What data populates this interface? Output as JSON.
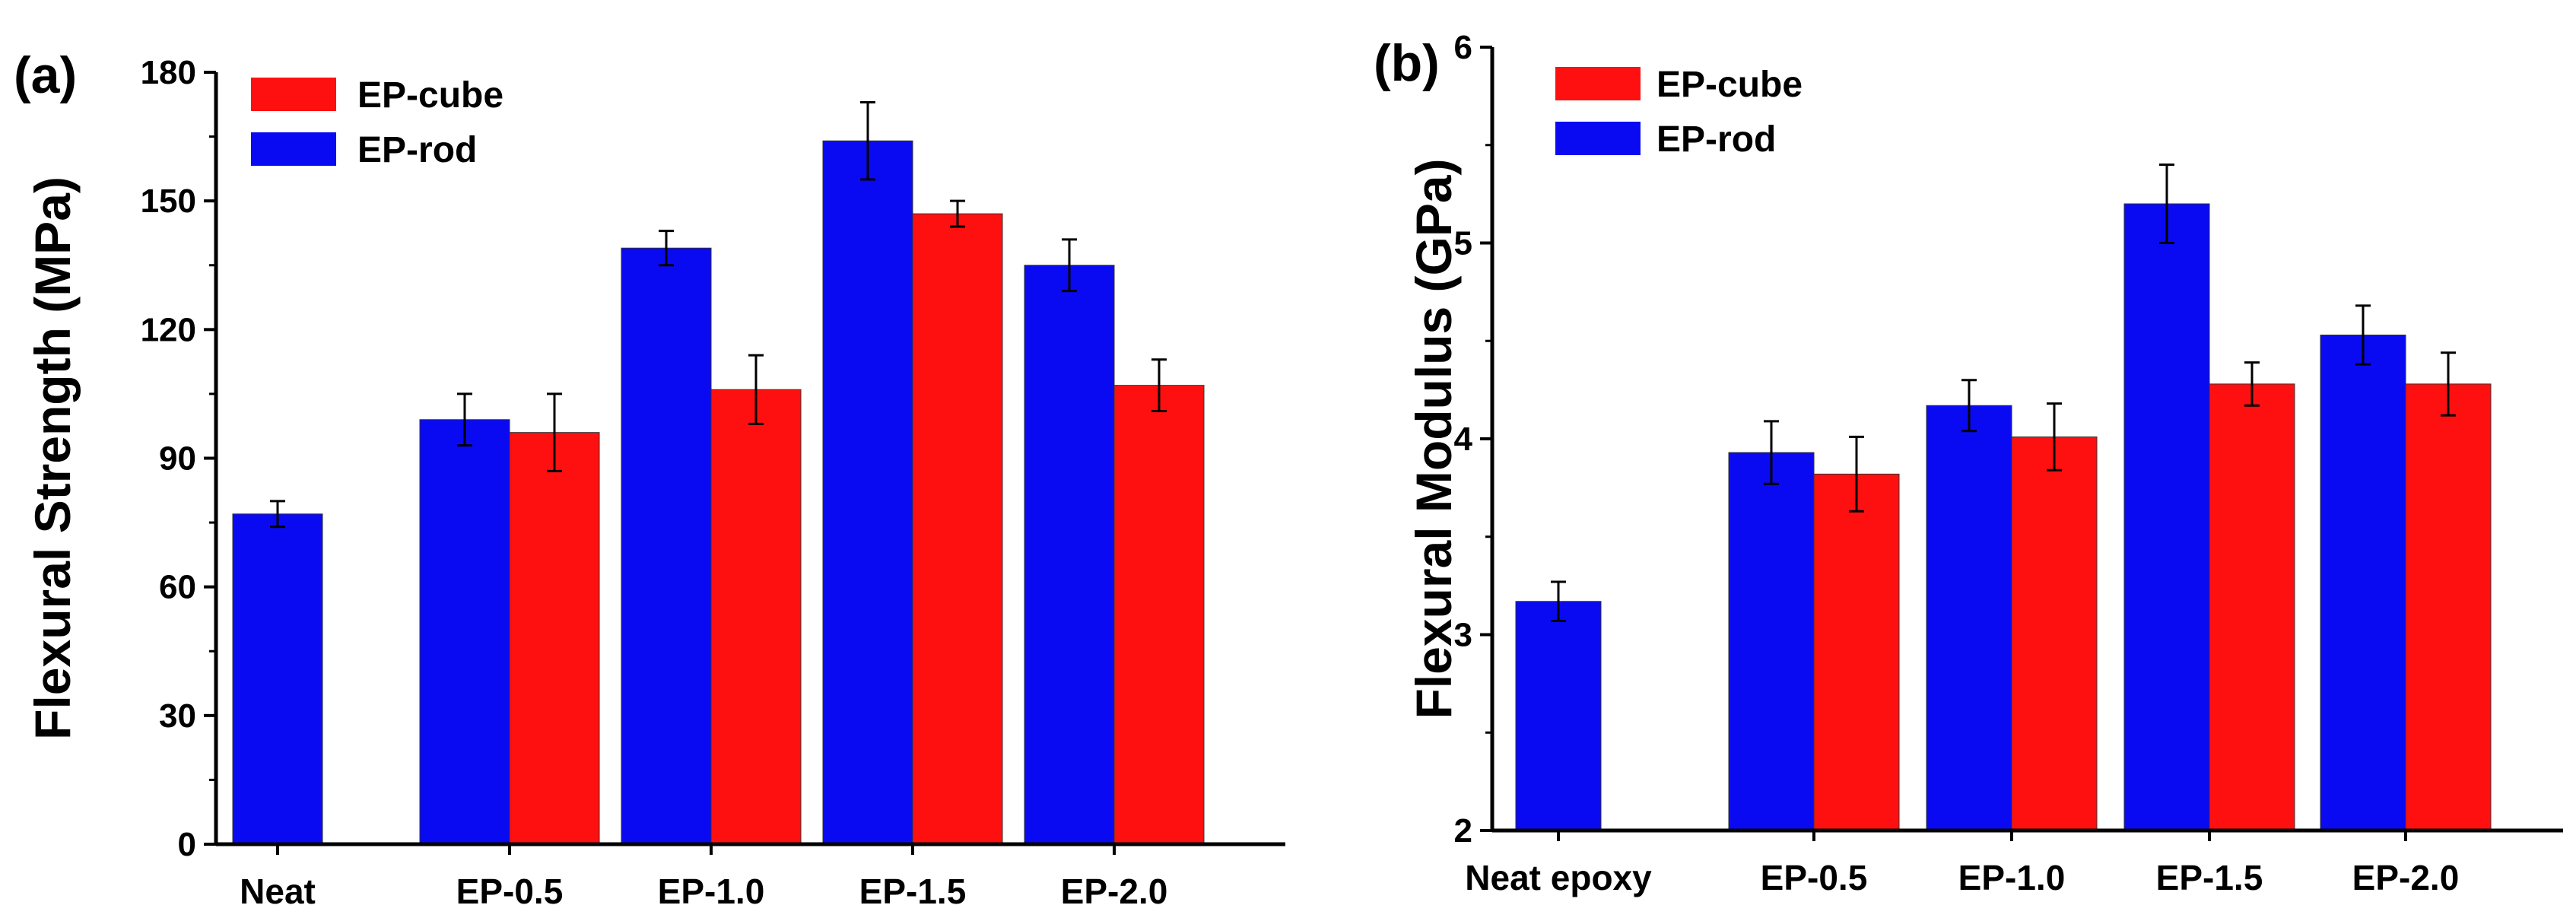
{
  "colors": {
    "rod": "#0a0af2",
    "cube": "#ff1010",
    "axis": "#000000"
  },
  "chart_data": [
    {
      "type": "bar",
      "panel_label": "(a)",
      "title": "",
      "xlabel": "",
      "ylabel": "Flexural Strength (MPa)",
      "ylim": [
        0,
        180
      ],
      "yticks": [
        0,
        30,
        60,
        90,
        120,
        150,
        180
      ],
      "categories": [
        "Neat",
        "EP-0.5",
        "EP-1.0",
        "EP-1.5",
        "EP-2.0"
      ],
      "legend_position": "top-left",
      "series": [
        {
          "name": "EP-rod",
          "color_key": "rod",
          "values": [
            77,
            99,
            139,
            164,
            135
          ],
          "errors": [
            3,
            6,
            4,
            9,
            6
          ]
        },
        {
          "name": "EP-cube",
          "color_key": "cube",
          "values": [
            null,
            96,
            106,
            147,
            107
          ],
          "errors": [
            null,
            9,
            8,
            3,
            6
          ]
        }
      ],
      "legend_order": [
        "EP-cube",
        "EP-rod"
      ]
    },
    {
      "type": "bar",
      "panel_label": "(b)",
      "title": "",
      "xlabel": "",
      "ylabel": "Flexural Modulus (GPa)",
      "ylim": [
        2,
        6
      ],
      "yticks": [
        2,
        3,
        4,
        5,
        6
      ],
      "categories": [
        "Neat  epoxy",
        "EP-0.5",
        "EP-1.0",
        "EP-1.5",
        "EP-2.0"
      ],
      "legend_position": "top-left",
      "series": [
        {
          "name": "EP-rod",
          "color_key": "rod",
          "values": [
            3.17,
            3.93,
            4.17,
            5.2,
            4.53
          ],
          "errors": [
            0.1,
            0.16,
            0.13,
            0.2,
            0.15
          ]
        },
        {
          "name": "EP-cube",
          "color_key": "cube",
          "values": [
            null,
            3.82,
            4.01,
            4.28,
            4.28
          ],
          "errors": [
            null,
            0.19,
            0.17,
            0.11,
            0.16
          ]
        }
      ],
      "legend_order": [
        "EP-cube",
        "EP-rod"
      ]
    }
  ]
}
